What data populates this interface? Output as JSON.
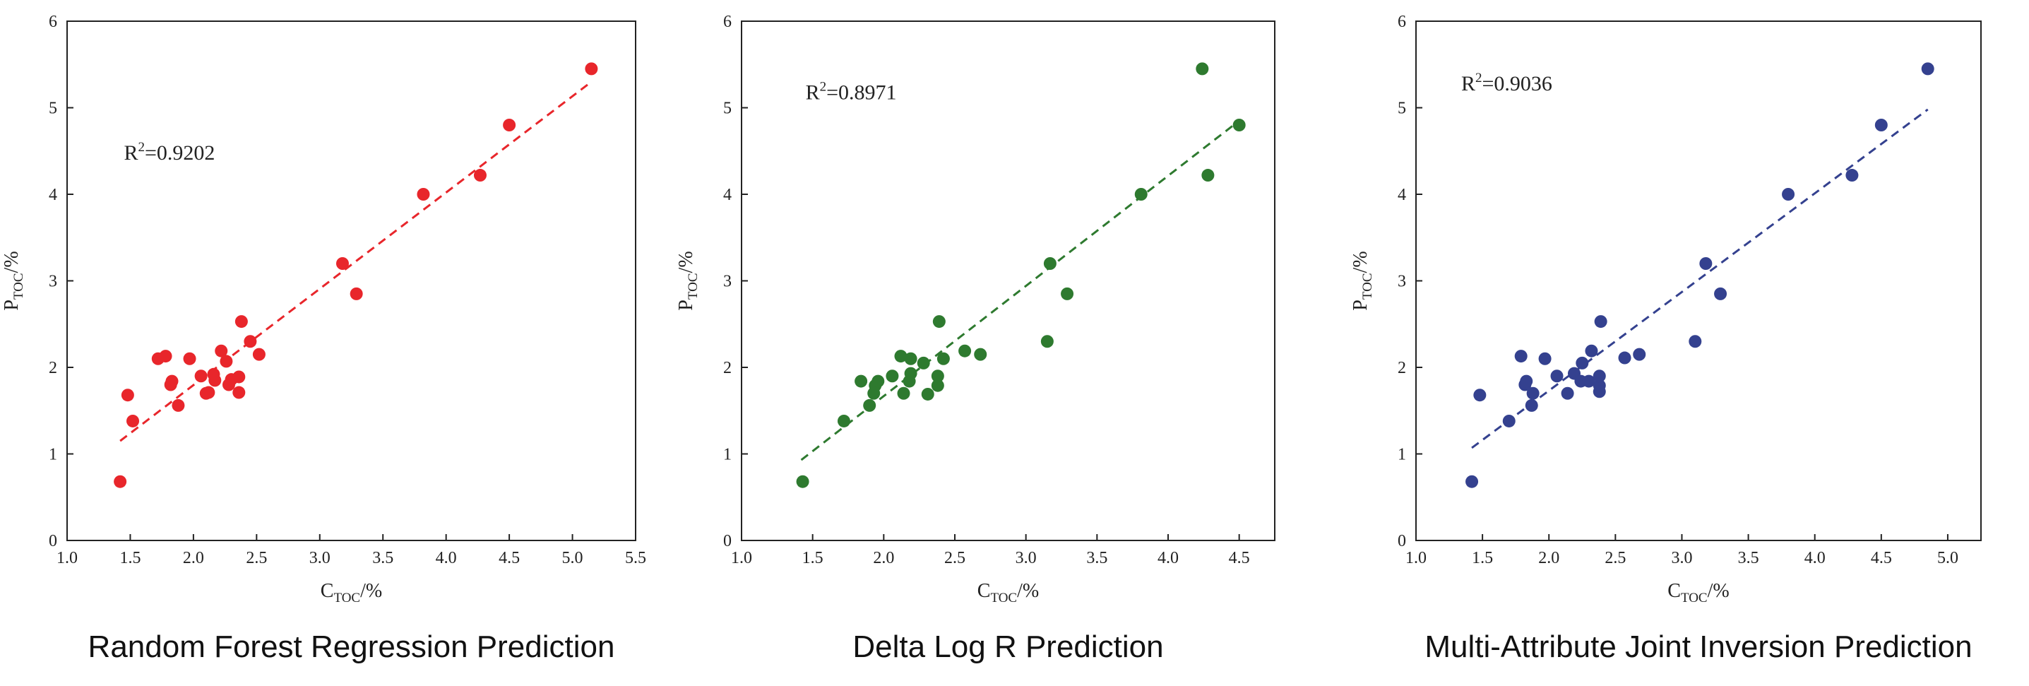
{
  "chart_data": [
    {
      "type": "scatter",
      "caption": "Random Forest Regression Prediction",
      "xlabel_main": "C",
      "xlabel_sub": "TOC",
      "xlabel_tail": "/%",
      "ylabel_main": "P",
      "ylabel_sub": "TOC",
      "ylabel_tail": "/%",
      "annotation_main": "R",
      "annotation_sup": "2",
      "annotation_tail": "=0.9202",
      "xlim": [
        1.0,
        5.5
      ],
      "ylim": [
        0,
        6
      ],
      "xticks": [
        "1.0",
        "1.5",
        "2.0",
        "2.5",
        "3.0",
        "3.5",
        "4.0",
        "4.5",
        "5.0",
        "5.5"
      ],
      "yticks": [
        "0",
        "1",
        "2",
        "3",
        "4",
        "5",
        "6"
      ],
      "color": "#e8262b",
      "fit": [
        [
          1.42,
          1.15
        ],
        [
          5.15,
          5.3
        ]
      ],
      "points": [
        [
          1.42,
          0.68
        ],
        [
          1.48,
          1.68
        ],
        [
          1.52,
          1.38
        ],
        [
          1.72,
          2.1
        ],
        [
          1.78,
          2.13
        ],
        [
          1.82,
          1.8
        ],
        [
          1.83,
          1.84
        ],
        [
          1.88,
          1.56
        ],
        [
          1.97,
          2.1
        ],
        [
          2.06,
          1.9
        ],
        [
          2.1,
          1.7
        ],
        [
          2.12,
          1.71
        ],
        [
          2.16,
          1.92
        ],
        [
          2.17,
          1.85
        ],
        [
          2.22,
          2.19
        ],
        [
          2.26,
          2.07
        ],
        [
          2.28,
          1.8
        ],
        [
          2.3,
          1.86
        ],
        [
          2.36,
          1.89
        ],
        [
          2.36,
          1.71
        ],
        [
          2.38,
          2.53
        ],
        [
          2.45,
          2.3
        ],
        [
          2.52,
          2.15
        ],
        [
          3.18,
          3.2
        ],
        [
          3.29,
          2.85
        ],
        [
          3.82,
          4.0
        ],
        [
          4.27,
          4.22
        ],
        [
          4.5,
          4.8
        ],
        [
          5.15,
          5.45
        ]
      ]
    },
    {
      "type": "scatter",
      "caption": "Delta Log R  Prediction",
      "xlabel_main": "C",
      "xlabel_sub": "TOC",
      "xlabel_tail": "/%",
      "ylabel_main": "P",
      "ylabel_sub": "TOC",
      "ylabel_tail": "/%",
      "annotation_main": "R",
      "annotation_sup": "2",
      "annotation_tail": "=0.8971",
      "xlim": [
        1.0,
        4.75
      ],
      "ylim": [
        0,
        6
      ],
      "xticks": [
        "1.0",
        "1.5",
        "2.0",
        "2.5",
        "3.0",
        "3.5",
        "4.0",
        "4.5"
      ],
      "yticks": [
        "0",
        "1",
        "2",
        "3",
        "4",
        "5",
        "6"
      ],
      "color": "#2e7a2f",
      "fit": [
        [
          1.42,
          0.93
        ],
        [
          4.5,
          4.85
        ]
      ],
      "points": [
        [
          1.43,
          0.68
        ],
        [
          1.72,
          1.38
        ],
        [
          1.84,
          1.84
        ],
        [
          1.9,
          1.56
        ],
        [
          1.93,
          1.7
        ],
        [
          1.94,
          1.79
        ],
        [
          1.96,
          1.84
        ],
        [
          2.06,
          1.9
        ],
        [
          2.12,
          2.13
        ],
        [
          2.14,
          1.7
        ],
        [
          2.18,
          1.84
        ],
        [
          2.19,
          1.93
        ],
        [
          2.19,
          2.1
        ],
        [
          2.28,
          2.05
        ],
        [
          2.31,
          1.69
        ],
        [
          2.38,
          1.79
        ],
        [
          2.38,
          1.9
        ],
        [
          2.39,
          2.53
        ],
        [
          2.42,
          2.1
        ],
        [
          2.57,
          2.19
        ],
        [
          2.68,
          2.15
        ],
        [
          3.15,
          2.3
        ],
        [
          3.17,
          3.2
        ],
        [
          3.29,
          2.85
        ],
        [
          3.81,
          4.0
        ],
        [
          4.24,
          5.45
        ],
        [
          4.28,
          4.22
        ],
        [
          4.5,
          4.8
        ]
      ]
    },
    {
      "type": "scatter",
      "caption": "Multi-Attribute Joint Inversion Prediction",
      "xlabel_main": "C",
      "xlabel_sub": "TOC",
      "xlabel_tail": "/%",
      "ylabel_main": "P",
      "ylabel_sub": "TOC",
      "ylabel_tail": "/%",
      "annotation_main": "R",
      "annotation_sup": "2",
      "annotation_tail": "=0.9036",
      "xlim": [
        1.0,
        5.25
      ],
      "ylim": [
        0,
        6
      ],
      "xticks": [
        "1.0",
        "1.5",
        "2.0",
        "2.5",
        "3.0",
        "3.5",
        "4.0",
        "4.5",
        "5.0"
      ],
      "yticks": [
        "0",
        "1",
        "2",
        "3",
        "4",
        "5",
        "6"
      ],
      "color": "#34418f",
      "fit": [
        [
          1.42,
          1.07
        ],
        [
          4.85,
          4.98
        ]
      ],
      "points": [
        [
          1.42,
          0.68
        ],
        [
          1.48,
          1.68
        ],
        [
          1.7,
          1.38
        ],
        [
          1.79,
          2.13
        ],
        [
          1.82,
          1.8
        ],
        [
          1.83,
          1.84
        ],
        [
          1.87,
          1.56
        ],
        [
          1.88,
          1.7
        ],
        [
          1.97,
          2.1
        ],
        [
          2.06,
          1.9
        ],
        [
          2.14,
          1.7
        ],
        [
          2.19,
          1.93
        ],
        [
          2.24,
          1.84
        ],
        [
          2.25,
          2.05
        ],
        [
          2.3,
          1.84
        ],
        [
          2.32,
          2.19
        ],
        [
          2.38,
          1.79
        ],
        [
          2.38,
          1.9
        ],
        [
          2.38,
          1.72
        ],
        [
          2.39,
          2.53
        ],
        [
          2.57,
          2.11
        ],
        [
          2.68,
          2.15
        ],
        [
          3.1,
          2.3
        ],
        [
          3.18,
          3.2
        ],
        [
          3.29,
          2.85
        ],
        [
          3.8,
          4.0
        ],
        [
          4.28,
          4.22
        ],
        [
          4.5,
          4.8
        ],
        [
          4.85,
          5.45
        ]
      ]
    }
  ]
}
